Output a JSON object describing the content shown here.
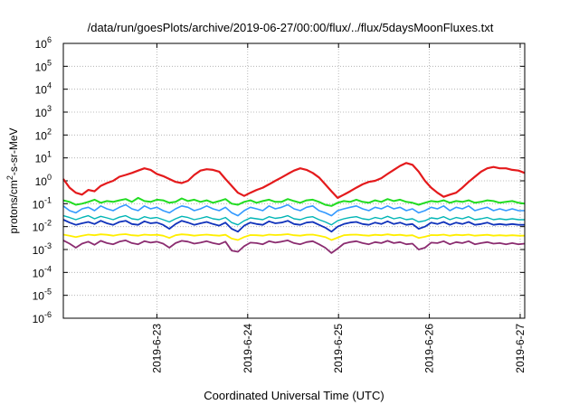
{
  "chart_data": {
    "type": "line",
    "title": "/data/run/goesPlots/archive/2019-06-27/00:00/flux/../flux/5daysMoonFluxes.txt",
    "xlabel": "Coordinated Universal Time (UTC)",
    "ylabel": {
      "base": "protons/cm",
      "sup": "2",
      "rest": "-s-sr-MeV"
    },
    "yscale": "log",
    "ylim": [
      1e-06,
      1000000.0
    ],
    "xlim": [
      2019.0622,
      2019.0627
    ],
    "x_range_days": [
      -0.03,
      5.05
    ],
    "grid": true,
    "y_ticks": [
      {
        "exp": -6,
        "label": "10",
        "sup": "-6"
      },
      {
        "exp": -5,
        "label": "10",
        "sup": "-5"
      },
      {
        "exp": -4,
        "label": "10",
        "sup": "-4"
      },
      {
        "exp": -3,
        "label": "10",
        "sup": "-3"
      },
      {
        "exp": -2,
        "label": "10",
        "sup": "-2"
      },
      {
        "exp": -1,
        "label": "10",
        "sup": "-1"
      },
      {
        "exp": 0,
        "label": "10",
        "sup": "0"
      },
      {
        "exp": 1,
        "label": "10",
        "sup": "1"
      },
      {
        "exp": 2,
        "label": "10",
        "sup": "2"
      },
      {
        "exp": 3,
        "label": "10",
        "sup": "3"
      },
      {
        "exp": 4,
        "label": "10",
        "sup": "4"
      },
      {
        "exp": 5,
        "label": "10",
        "sup": "5"
      },
      {
        "exp": 6,
        "label": "10",
        "sup": "6"
      }
    ],
    "x_ticks": [
      {
        "day": 1,
        "label": "2019-6-23"
      },
      {
        "day": 2,
        "label": "2019-6-24"
      },
      {
        "day": 3,
        "label": "2019-6-25"
      },
      {
        "day": 4,
        "label": "2019-6-26"
      },
      {
        "day": 5,
        "label": "2019-6-27"
      }
    ],
    "series": [
      {
        "color": "#e41a1c",
        "width": 2.2,
        "values": [
          1.2,
          0.5,
          0.3,
          0.25,
          0.4,
          0.35,
          0.6,
          0.8,
          1.0,
          1.5,
          1.8,
          2.2,
          2.8,
          3.5,
          3.0,
          2.0,
          1.6,
          1.2,
          0.9,
          0.8,
          1.0,
          1.8,
          2.8,
          3.2,
          3.0,
          2.5,
          1.2,
          0.6,
          0.3,
          0.22,
          0.3,
          0.4,
          0.5,
          0.7,
          1.0,
          1.4,
          2.0,
          2.8,
          3.5,
          3.0,
          2.2,
          1.4,
          0.7,
          0.35,
          0.18,
          0.25,
          0.35,
          0.5,
          0.7,
          0.9,
          1.0,
          1.3,
          2.0,
          3.0,
          4.5,
          6.0,
          5.0,
          2.5,
          1.0,
          0.5,
          0.3,
          0.2,
          0.25,
          0.3,
          0.5,
          0.9,
          1.5,
          2.5,
          3.5,
          4.0,
          3.5,
          3.5,
          3.0,
          2.8,
          2.2
        ]
      },
      {
        "color": "#22dd22",
        "width": 2.0,
        "values": [
          0.14,
          0.12,
          0.09,
          0.1,
          0.12,
          0.15,
          0.11,
          0.13,
          0.12,
          0.14,
          0.16,
          0.12,
          0.18,
          0.13,
          0.12,
          0.15,
          0.14,
          0.11,
          0.12,
          0.17,
          0.13,
          0.15,
          0.12,
          0.14,
          0.11,
          0.13,
          0.16,
          0.1,
          0.09,
          0.12,
          0.14,
          0.11,
          0.13,
          0.15,
          0.12,
          0.12,
          0.16,
          0.13,
          0.11,
          0.14,
          0.15,
          0.12,
          0.09,
          0.08,
          0.11,
          0.13,
          0.12,
          0.15,
          0.12,
          0.11,
          0.14,
          0.12,
          0.16,
          0.13,
          0.15,
          0.12,
          0.11,
          0.09,
          0.11,
          0.13,
          0.12,
          0.14,
          0.11,
          0.13,
          0.12,
          0.14,
          0.11,
          0.12,
          0.14,
          0.13,
          0.11,
          0.12,
          0.13,
          0.11,
          0.1
        ]
      },
      {
        "color": "#3399ff",
        "width": 1.6,
        "values": [
          0.08,
          0.05,
          0.04,
          0.06,
          0.07,
          0.05,
          0.08,
          0.06,
          0.05,
          0.07,
          0.09,
          0.06,
          0.05,
          0.08,
          0.06,
          0.07,
          0.05,
          0.04,
          0.06,
          0.08,
          0.07,
          0.05,
          0.06,
          0.08,
          0.06,
          0.05,
          0.07,
          0.04,
          0.03,
          0.05,
          0.07,
          0.06,
          0.05,
          0.08,
          0.06,
          0.07,
          0.09,
          0.06,
          0.05,
          0.07,
          0.08,
          0.05,
          0.04,
          0.03,
          0.05,
          0.06,
          0.07,
          0.08,
          0.06,
          0.05,
          0.07,
          0.06,
          0.08,
          0.06,
          0.07,
          0.05,
          0.06,
          0.04,
          0.05,
          0.07,
          0.06,
          0.08,
          0.05,
          0.07,
          0.06,
          0.08,
          0.05,
          0.06,
          0.07,
          0.05,
          0.06,
          0.05,
          0.06,
          0.05,
          0.05
        ]
      },
      {
        "color": "#00b5b5",
        "width": 1.4,
        "values": [
          0.03,
          0.025,
          0.02,
          0.025,
          0.03,
          0.022,
          0.028,
          0.024,
          0.02,
          0.026,
          0.03,
          0.022,
          0.02,
          0.027,
          0.023,
          0.025,
          0.02,
          0.016,
          0.022,
          0.028,
          0.025,
          0.02,
          0.023,
          0.027,
          0.022,
          0.02,
          0.025,
          0.015,
          0.012,
          0.018,
          0.024,
          0.022,
          0.02,
          0.027,
          0.023,
          0.025,
          0.03,
          0.022,
          0.02,
          0.025,
          0.027,
          0.02,
          0.016,
          0.012,
          0.018,
          0.022,
          0.025,
          0.027,
          0.022,
          0.02,
          0.025,
          0.022,
          0.028,
          0.022,
          0.025,
          0.02,
          0.022,
          0.016,
          0.018,
          0.024,
          0.022,
          0.027,
          0.02,
          0.025,
          0.022,
          0.027,
          0.02,
          0.022,
          0.025,
          0.02,
          0.022,
          0.02,
          0.022,
          0.02,
          0.02
        ]
      },
      {
        "color": "#1133bb",
        "width": 1.8,
        "values": [
          0.02,
          0.015,
          0.012,
          0.014,
          0.016,
          0.013,
          0.018,
          0.014,
          0.012,
          0.016,
          0.018,
          0.013,
          0.012,
          0.017,
          0.014,
          0.015,
          0.012,
          0.008,
          0.013,
          0.018,
          0.015,
          0.012,
          0.014,
          0.016,
          0.013,
          0.011,
          0.015,
          0.008,
          0.006,
          0.011,
          0.015,
          0.013,
          0.012,
          0.017,
          0.014,
          0.015,
          0.018,
          0.013,
          0.012,
          0.015,
          0.016,
          0.012,
          0.009,
          0.006,
          0.01,
          0.013,
          0.015,
          0.016,
          0.013,
          0.012,
          0.015,
          0.013,
          0.017,
          0.013,
          0.015,
          0.012,
          0.013,
          0.008,
          0.01,
          0.015,
          0.013,
          0.016,
          0.012,
          0.015,
          0.013,
          0.016,
          0.012,
          0.013,
          0.015,
          0.012,
          0.013,
          0.012,
          0.013,
          0.012,
          0.012
        ]
      },
      {
        "color": "#ffee00",
        "width": 1.8,
        "values": [
          0.0045,
          0.004,
          0.0035,
          0.004,
          0.0045,
          0.0042,
          0.0046,
          0.0044,
          0.004,
          0.0045,
          0.0047,
          0.0042,
          0.004,
          0.0045,
          0.0043,
          0.0044,
          0.004,
          0.0032,
          0.0042,
          0.0046,
          0.0044,
          0.004,
          0.0043,
          0.0045,
          0.0042,
          0.004,
          0.0044,
          0.003,
          0.0026,
          0.0035,
          0.0043,
          0.0042,
          0.004,
          0.0045,
          0.0043,
          0.0044,
          0.0047,
          0.0042,
          0.004,
          0.0044,
          0.0045,
          0.004,
          0.0035,
          0.0026,
          0.0033,
          0.0042,
          0.0044,
          0.0045,
          0.0042,
          0.004,
          0.0044,
          0.0042,
          0.0046,
          0.0042,
          0.0044,
          0.004,
          0.0042,
          0.0032,
          0.0036,
          0.0043,
          0.0042,
          0.0045,
          0.004,
          0.0044,
          0.0042,
          0.0045,
          0.004,
          0.0042,
          0.0044,
          0.004,
          0.0042,
          0.004,
          0.0042,
          0.004,
          0.004
        ]
      },
      {
        "color": "#8b2c70",
        "width": 1.8,
        "values": [
          0.0025,
          0.0018,
          0.0012,
          0.0018,
          0.0022,
          0.0016,
          0.0024,
          0.0019,
          0.0017,
          0.0022,
          0.0025,
          0.0019,
          0.0017,
          0.0023,
          0.002,
          0.0022,
          0.0018,
          0.0012,
          0.0019,
          0.0024,
          0.0022,
          0.0018,
          0.002,
          0.0023,
          0.0019,
          0.0017,
          0.0022,
          0.0009,
          0.0008,
          0.0014,
          0.002,
          0.0019,
          0.0017,
          0.0023,
          0.002,
          0.0022,
          0.0025,
          0.0019,
          0.0017,
          0.0021,
          0.0023,
          0.0017,
          0.0012,
          0.0007,
          0.0011,
          0.0018,
          0.0021,
          0.0023,
          0.0019,
          0.0017,
          0.0021,
          0.0019,
          0.0024,
          0.0019,
          0.0021,
          0.0017,
          0.0018,
          0.001,
          0.0012,
          0.002,
          0.0019,
          0.0023,
          0.0017,
          0.0021,
          0.0019,
          0.0023,
          0.0017,
          0.0019,
          0.0021,
          0.0018,
          0.0019,
          0.0017,
          0.0019,
          0.0017,
          0.0018
        ]
      }
    ]
  }
}
